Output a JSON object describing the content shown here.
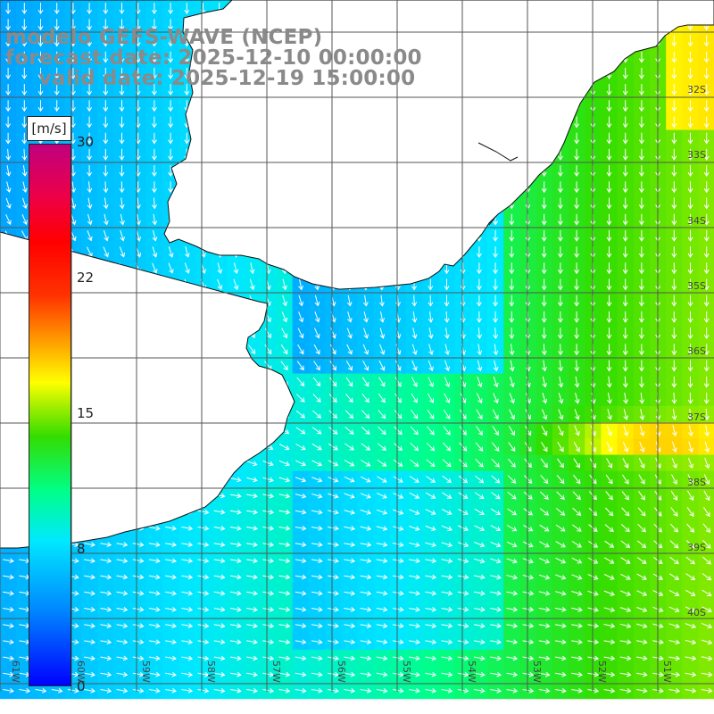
{
  "titles": {
    "line1": "modelo GEFS-WAVE (NCEP)",
    "line2": "forecast date: 2025-12-10 00:00:00",
    "line3": "valid date: 2025-12-19 15:00:00"
  },
  "colorbar": {
    "unit": "[m/s]",
    "ticks": [
      "30",
      "22",
      "15",
      "8",
      "0"
    ],
    "tick_values": [
      30,
      22,
      15,
      8,
      0
    ],
    "min": 0,
    "max": 30,
    "colors": [
      "#0000ff",
      "#0088ff",
      "#00e8ff",
      "#00ff88",
      "#33dd00",
      "#ffff00",
      "#ff9900",
      "#ff0000",
      "#c00080"
    ]
  },
  "map": {
    "lat_labels": [
      "32S",
      "33S",
      "34S",
      "35S",
      "36S",
      "37S",
      "38S",
      "39S",
      "40S"
    ],
    "lon_labels": [
      "61W",
      "60W",
      "59W",
      "58W",
      "57W",
      "56W",
      "55W",
      "54W",
      "53W",
      "52W",
      "51W"
    ],
    "land_color": "#ffffff",
    "vector_color": "#ffffff"
  }
}
